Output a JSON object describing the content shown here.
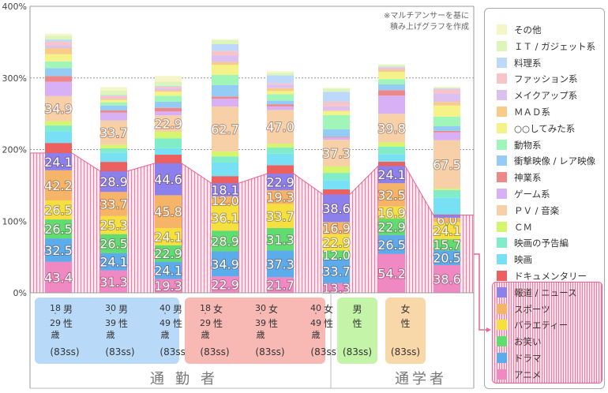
{
  "chart_data": {
    "type": "bar",
    "stacked": true,
    "ylim": [
      0,
      400
    ],
    "yticks": [
      "0%",
      "100%",
      "200%",
      "300%",
      "400%"
    ],
    "grid": true,
    "legend_position": "right",
    "note": [
      "※マルチアンサーを基に",
      "積み上げグラフを作成"
    ],
    "categories": [
      "通勤者 男性18〜29歳",
      "通勤者 男性30〜39歳",
      "通勤者 男性40〜49歳",
      "通勤者 女性18〜29歳",
      "通勤者 女性30〜39歳",
      "通勤者 女性40〜49歳",
      "通学者 男性",
      "通学者 女性"
    ],
    "series": [
      {
        "name": "アニメ",
        "color": "#f088c4",
        "labeled": true,
        "values": [
          43.4,
          31.3,
          19.3,
          22.9,
          21.7,
          13.3,
          54.2,
          38.6
        ]
      },
      {
        "name": "ドラマ",
        "color": "#5cacec",
        "labeled": true,
        "values": [
          32.5,
          24.1,
          24.1,
          34.9,
          37.3,
          33.7,
          26.5,
          20.5
        ]
      },
      {
        "name": "お笑い",
        "color": "#60dc70",
        "labeled": true,
        "values": [
          26.5,
          26.5,
          22.9,
          28.9,
          31.3,
          12.0,
          22.9,
          15.7
        ]
      },
      {
        "name": "バラエティー",
        "color": "#f5e040",
        "labeled": true,
        "values": [
          26.5,
          25.3,
          24.1,
          36.1,
          33.7,
          22.9,
          16.9,
          24.1
        ]
      },
      {
        "name": "スポーツ",
        "color": "#f5b468",
        "labeled": true,
        "values": [
          42.2,
          33.7,
          45.8,
          12.0,
          19.3,
          16.9,
          32.5,
          6.0
        ]
      },
      {
        "name": "報道 / ニュース",
        "color": "#8c80ec",
        "labeled": true,
        "values": [
          24.1,
          28.9,
          44.6,
          18.1,
          22.9,
          38.6,
          24.1,
          3.6
        ]
      },
      {
        "name": "ドキュメンタリー",
        "color": "#ec6060",
        "labeled": false,
        "values": [
          14,
          13,
          12,
          10,
          12,
          7,
          6,
          1
        ]
      },
      {
        "name": "映画",
        "color": "#78e0f5",
        "labeled": false,
        "values": [
          16.5,
          13,
          9,
          19,
          16,
          13,
          10,
          23
        ]
      },
      {
        "name": "映画の予告編",
        "color": "#80ecc8",
        "labeled": false,
        "values": [
          8,
          6,
          14,
          8.5,
          8.5,
          10,
          11,
          11
        ]
      },
      {
        "name": "ＣＭ",
        "color": "#d4f56c",
        "labeled": false,
        "values": [
          6,
          5,
          9,
          7,
          5.5,
          9,
          6,
          2
        ]
      },
      {
        "name": "ＰＶ / 音楽",
        "color": "#f8d0a8",
        "labeled": true,
        "values": [
          34.9,
          33.7,
          22.9,
          62.7,
          47.0,
          37.3,
          39.8,
          67.5
        ]
      },
      {
        "name": "ゲーム系",
        "color": "#d8b0f5",
        "labeled": false,
        "values": [
          20,
          11,
          5.5,
          11,
          5,
          3,
          25.5,
          11
        ]
      },
      {
        "name": "神業系",
        "color": "#ee8888",
        "labeled": false,
        "values": [
          8,
          3,
          5,
          3,
          3,
          1,
          7.5,
          2
        ]
      },
      {
        "name": "衝撃映像 / レア映像",
        "color": "#94ccf5",
        "labeled": false,
        "values": [
          11,
          7,
          8.5,
          16,
          5,
          10.5,
          8,
          6.5
        ]
      },
      {
        "name": "動物系",
        "color": "#a0f5b8",
        "labeled": false,
        "values": [
          9.5,
          4.5,
          8.5,
          14,
          9,
          20,
          7.5,
          13.5
        ]
      },
      {
        "name": "○○してみた系",
        "color": "#f5f288",
        "labeled": false,
        "values": [
          10,
          3,
          5.5,
          14,
          4.5,
          5.5,
          10,
          15.5
        ]
      },
      {
        "name": "ＭＡＤ系",
        "color": "#f8cc88",
        "labeled": false,
        "values": [
          8.5,
          2,
          2,
          4,
          4,
          1,
          3,
          5
        ]
      },
      {
        "name": "メイクアップ系",
        "color": "#dcc0f0",
        "labeled": false,
        "values": [
          4,
          1,
          3,
          9.5,
          5,
          5.5,
          1,
          12
        ]
      },
      {
        "name": "ファッション系",
        "color": "#f8c4c8",
        "labeled": false,
        "values": [
          5,
          3,
          2,
          6,
          2,
          6.5,
          2.5,
          6
        ]
      },
      {
        "name": "料理系",
        "color": "#bcd8fa",
        "labeled": false,
        "values": [
          3,
          1,
          1,
          9.5,
          11,
          14,
          1,
          1
        ]
      },
      {
        "name": "ＩＴ / ガジェット系",
        "color": "#dcf5b8",
        "labeled": false,
        "values": [
          5,
          6,
          6,
          5.5,
          3.5,
          4.5,
          2,
          1
        ]
      },
      {
        "name": "その他",
        "color": "#f5f5c8",
        "labeled": false,
        "values": [
          3,
          5,
          8,
          1.5,
          2,
          1,
          1,
          1
        ]
      }
    ],
    "highlight_color": "#f06090"
  },
  "groups": [
    {
      "name": "通勤者",
      "color": "#b8daf8",
      "cols": [
        {
          "age_from": "18",
          "age_to": "29",
          "age_unit": "歳",
          "gender": "男性",
          "sample": "(83ss)"
        },
        {
          "age_from": "30",
          "age_to": "39",
          "age_unit": "歳",
          "gender": "男性",
          "sample": "(83ss)"
        },
        {
          "age_from": "40",
          "age_to": "49",
          "age_unit": "歳",
          "gender": "男性",
          "sample": "(83ss)"
        }
      ]
    },
    {
      "name": "",
      "color": "#f8b8b4",
      "cols": [
        {
          "age_from": "18",
          "age_to": "29",
          "age_unit": "歳",
          "gender": "女性",
          "sample": "(83ss)"
        },
        {
          "age_from": "30",
          "age_to": "39",
          "age_unit": "歳",
          "gender": "女性",
          "sample": "(83ss)"
        },
        {
          "age_from": "40",
          "age_to": "49",
          "age_unit": "歳",
          "gender": "女性",
          "sample": "(83ss)"
        }
      ]
    },
    {
      "name": "通学者",
      "color": "#c4f4a8",
      "cols": [
        {
          "gender": "男性",
          "sample": "(83ss)"
        }
      ]
    },
    {
      "name": "",
      "color": "#f8d8a8",
      "cols": [
        {
          "gender": "女性",
          "sample": "(83ss)"
        }
      ]
    }
  ]
}
